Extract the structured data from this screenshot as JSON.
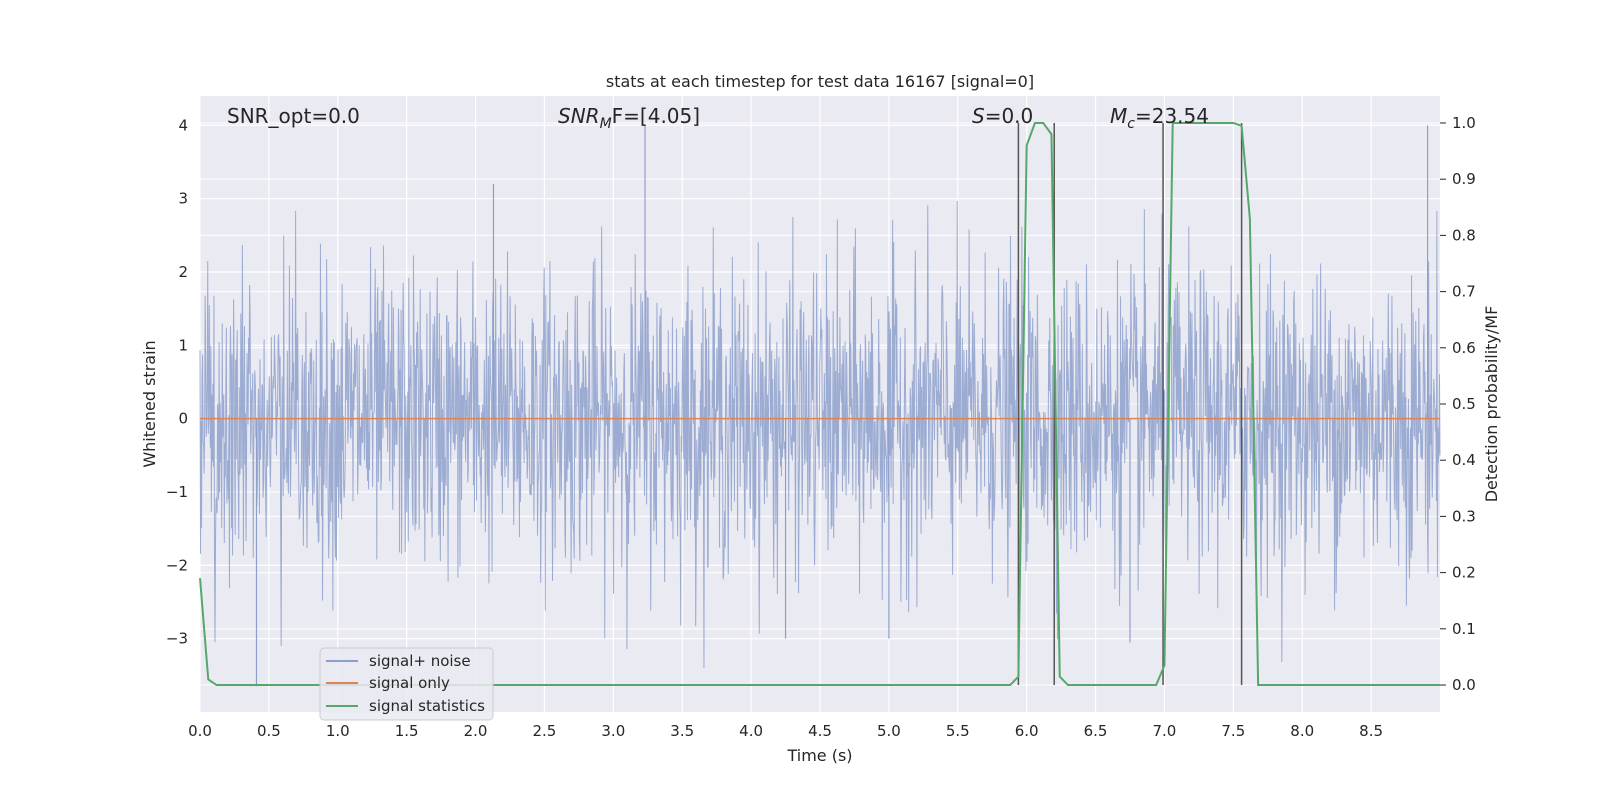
{
  "chart_data": {
    "type": "line",
    "title": "stats at each timestep for test data 16167 [signal=0]",
    "xlabel": "Time (s)",
    "ylabel": "Whitened strain",
    "ylabel_right": "Detection probability/MF",
    "xlim": [
      0.0,
      9.0
    ],
    "ylim": [
      -4.0,
      4.4
    ],
    "ylim_right": [
      -0.048,
      1.048
    ],
    "x_ticks": [
      0.0,
      0.5,
      1.0,
      1.5,
      2.0,
      2.5,
      3.0,
      3.5,
      4.0,
      4.5,
      5.0,
      5.5,
      6.0,
      6.5,
      7.0,
      7.5,
      8.0,
      8.5
    ],
    "x_tick_labels": [
      "0.0",
      "0.5",
      "1.0",
      "1.5",
      "2.0",
      "2.5",
      "3.0",
      "3.5",
      "4.0",
      "4.5",
      "5.0",
      "5.5",
      "6.0",
      "6.5",
      "7.0",
      "7.5",
      "8.0",
      "8.5"
    ],
    "y_ticks": [
      -3,
      -2,
      -1,
      0,
      1,
      2,
      3,
      4
    ],
    "y_tick_labels": [
      "−3",
      "−2",
      "−1",
      "0",
      "1",
      "2",
      "3",
      "4"
    ],
    "y_ticks_right": [
      0.0,
      0.1,
      0.2,
      0.3,
      0.4,
      0.5,
      0.6,
      0.7,
      0.8,
      0.9,
      1.0
    ],
    "y_tick_labels_right": [
      "0.0",
      "0.1",
      "0.2",
      "0.3",
      "0.4",
      "0.5",
      "0.6",
      "0.7",
      "0.8",
      "0.9",
      "1.0"
    ],
    "grid": true,
    "legend_position": "lower-left",
    "annotations": {
      "snr_opt": "SNR_opt=0.0",
      "snr_mf_main": "SNR",
      "snr_mf_sub": "M",
      "snr_mf_rest": "F=[4.05]",
      "s_main": "S",
      "s_rest": "=0.0",
      "mc_main": "M",
      "mc_sub": "c",
      "mc_rest": "=23.54"
    },
    "series": [
      {
        "name": "signal+ noise",
        "color": "#8da0cb",
        "description": "whitened noise, approx. sigma 1, samples span about -3.7 to 4.0",
        "peaks": [
          [
            0.41,
            -3.65
          ],
          [
            2.13,
            3.2
          ],
          [
            3.23,
            4.0
          ],
          [
            8.91,
            4.0
          ],
          [
            5.0,
            -3.0
          ],
          [
            4.25,
            -3.0
          ],
          [
            6.75,
            -3.05
          ]
        ]
      },
      {
        "name": "signal only",
        "color": "#dd8452",
        "x": [
          0.0,
          9.0
        ],
        "y": [
          0.0,
          0.0
        ]
      },
      {
        "name": "signal statistics",
        "color": "#55a868",
        "axis": "right",
        "x": [
          0.0,
          0.06,
          0.12,
          5.88,
          5.94,
          6.0,
          6.06,
          6.12,
          6.18,
          6.24,
          6.3,
          6.94,
          7.0,
          7.06,
          7.5,
          7.56,
          7.62,
          7.68,
          7.75,
          9.0
        ],
        "y": [
          0.19,
          0.01,
          0.0,
          0.0,
          0.015,
          0.96,
          1.0,
          1.0,
          0.98,
          0.015,
          0.0,
          0.0,
          0.035,
          1.0,
          1.0,
          0.995,
          0.83,
          0.0,
          0.0,
          0.0
        ]
      }
    ],
    "vlines": [
      5.94,
      6.2,
      6.99,
      7.56
    ]
  }
}
